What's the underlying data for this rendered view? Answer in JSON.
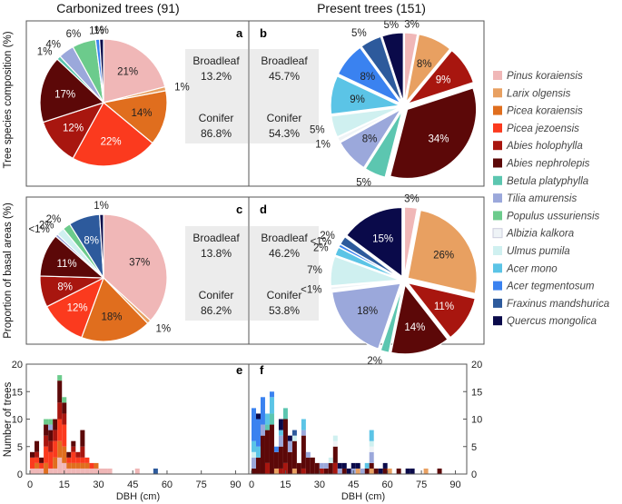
{
  "columns": {
    "left": "Carbonized trees (91)",
    "right": "Present trees (151)"
  },
  "row_labels": {
    "top": "Tree species composition (%)",
    "middle": "Proportion of basal areas (%)",
    "bottom": "Number of trees"
  },
  "species": [
    {
      "name": "Pinus koraiensis",
      "color": "#f0b7b7"
    },
    {
      "name": "Larix olgensis",
      "color": "#e8a061"
    },
    {
      "name": "Picea koraiensis",
      "color": "#e06e1e"
    },
    {
      "name": "Picea jezoensis",
      "color": "#fb3a1e"
    },
    {
      "name": "Abies holophylla",
      "color": "#a8160f"
    },
    {
      "name": "Abies nephrolepis",
      "color": "#5c0808"
    },
    {
      "name": "Betula platyphylla",
      "color": "#5cc6b0"
    },
    {
      "name": "Tilia amurensis",
      "color": "#9ba8db"
    },
    {
      "name": "Populus ussuriensis",
      "color": "#6ccb8c"
    },
    {
      "name": "Albizia kalkora",
      "color": "#eef3f6"
    },
    {
      "name": "Ulmus pumila",
      "color": "#cff0f0"
    },
    {
      "name": "Acer mono",
      "color": "#5bc4e6"
    },
    {
      "name": "Acer tegmentosum",
      "color": "#3a82f0"
    },
    {
      "name": "Fraxinus mandshurica",
      "color": "#2d5a9c"
    },
    {
      "name": "Quercus mongolica",
      "color": "#0a0a4a"
    }
  ],
  "panels": {
    "a": "a",
    "b": "b",
    "c": "c",
    "d": "d",
    "e": "e",
    "f": "f"
  },
  "boxes": {
    "a": {
      "broadleaf_label": "Broadleaf",
      "broadleaf": "13.2%",
      "conifer_label": "Conifer",
      "conifer": "86.8%"
    },
    "b": {
      "broadleaf_label": "Broadleaf",
      "broadleaf": "45.7%",
      "conifer_label": "Conifer",
      "conifer": "54.3%"
    },
    "c": {
      "broadleaf_label": "Broadleaf",
      "broadleaf": "13.8%",
      "conifer_label": "Conifer",
      "conifer": "86.2%"
    },
    "d": {
      "broadleaf_label": "Broadleaf",
      "broadleaf": "46.2%",
      "conifer_label": "Conifer",
      "conifer": "53.8%"
    }
  },
  "chart_data": [
    {
      "panel": "a",
      "type": "pie",
      "slices": [
        {
          "species": "Pinus koraiensis",
          "value": 21,
          "label": "21%"
        },
        {
          "species": "Larix olgensis",
          "value": 1,
          "label": "1%"
        },
        {
          "species": "Picea koraiensis",
          "value": 14,
          "label": "14%"
        },
        {
          "species": "Picea jezoensis",
          "value": 22,
          "label": "22%"
        },
        {
          "species": "Abies holophylla",
          "value": 12,
          "label": "12%"
        },
        {
          "species": "Abies nephrolepis",
          "value": 17,
          "label": "17%"
        },
        {
          "species": "Betula platyphylla",
          "value": 1,
          "label": "1%"
        },
        {
          "species": "Tilia amurensis",
          "value": 4,
          "label": "4%"
        },
        {
          "species": "Populus ussuriensis",
          "value": 6,
          "label": "6%"
        },
        {
          "species": "Acer tegmentosum",
          "value": 1,
          "label": "1%"
        },
        {
          "species": "Quercus mongolica",
          "value": 1,
          "label": "1%"
        }
      ]
    },
    {
      "panel": "b",
      "type": "pie",
      "slices": [
        {
          "species": "Pinus koraiensis",
          "value": 3,
          "label": "3%"
        },
        {
          "species": "Larix olgensis",
          "value": 8,
          "label": "8%"
        },
        {
          "species": "Abies holophylla",
          "value": 9,
          "label": "9%"
        },
        {
          "species": "Abies nephrolepis",
          "value": 34,
          "label": "34%"
        },
        {
          "species": "Betula platyphylla",
          "value": 5,
          "label": "5%"
        },
        {
          "species": "Tilia amurensis",
          "value": 8,
          "label": "8%"
        },
        {
          "species": "Albizia kalkora",
          "value": 1,
          "label": "1%"
        },
        {
          "species": "Ulmus pumila",
          "value": 5,
          "label": "5%"
        },
        {
          "species": "Acer mono",
          "value": 9,
          "label": "9%"
        },
        {
          "species": "Acer tegmentosum",
          "value": 8,
          "label": "8%"
        },
        {
          "species": "Fraxinus mandshurica",
          "value": 5,
          "label": "5%"
        },
        {
          "species": "Quercus mongolica",
          "value": 5,
          "label": "5%"
        }
      ]
    },
    {
      "panel": "c",
      "type": "pie",
      "slices": [
        {
          "species": "Pinus koraiensis",
          "value": 37,
          "label": "37%"
        },
        {
          "species": "Larix olgensis",
          "value": 1,
          "label": "1%"
        },
        {
          "species": "Picea koraiensis",
          "value": 18,
          "label": "18%"
        },
        {
          "species": "Picea jezoensis",
          "value": 12,
          "label": "12%"
        },
        {
          "species": "Abies holophylla",
          "value": 8,
          "label": "8%"
        },
        {
          "species": "Abies nephrolepis",
          "value": 11,
          "label": "11%"
        },
        {
          "species": "Tilia amurensis",
          "value": 0.7,
          "label": "<1%"
        },
        {
          "species": "Ulmus pumila",
          "value": 2,
          "label": "2%"
        },
        {
          "species": "Populus ussuriensis",
          "value": 2,
          "label": "2%"
        },
        {
          "species": "Fraxinus mandshurica",
          "value": 8,
          "label": "8%"
        },
        {
          "species": "Quercus mongolica",
          "value": 1,
          "label": "1%"
        }
      ]
    },
    {
      "panel": "d",
      "type": "pie",
      "slices": [
        {
          "species": "Pinus koraiensis",
          "value": 3,
          "label": "3%"
        },
        {
          "species": "Larix olgensis",
          "value": 26,
          "label": "26%"
        },
        {
          "species": "Abies holophylla",
          "value": 11,
          "label": "11%"
        },
        {
          "species": "Abies nephrolepis",
          "value": 14,
          "label": "14%"
        },
        {
          "species": "Betula platyphylla",
          "value": 2,
          "label": "2%"
        },
        {
          "species": "Tilia amurensis",
          "value": 18,
          "label": "18%"
        },
        {
          "species": "Albizia kalkora",
          "value": 0.7,
          "label": "<1%"
        },
        {
          "species": "Ulmus pumila",
          "value": 7,
          "label": "7%"
        },
        {
          "species": "Acer mono",
          "value": 2,
          "label": "2%"
        },
        {
          "species": "Acer tegmentosum",
          "value": 0.7,
          "label": "<1%"
        },
        {
          "species": "Fraxinus mandshurica",
          "value": 2,
          "label": "2%"
        },
        {
          "species": "Quercus mongolica",
          "value": 15,
          "label": "15%"
        }
      ]
    },
    {
      "panel": "e",
      "type": "bar",
      "stacked": true,
      "xlabel": "DBH (cm)",
      "ylabel": "Number of trees",
      "xlim": [
        0,
        95
      ],
      "ylim": [
        0,
        20
      ],
      "xticks": [
        0,
        15,
        30,
        45,
        60,
        75,
        90
      ],
      "yticks": [
        0,
        5,
        10,
        15,
        20
      ],
      "bin_width": 2,
      "bins": [
        {
          "x": 2,
          "counts": {
            "Pinus koraiensis": 1,
            "Picea jezoensis": 2,
            "Abies nephrolepis": 1
          }
        },
        {
          "x": 4,
          "counts": {
            "Pinus koraiensis": 1,
            "Picea koraiensis": 1,
            "Picea jezoensis": 1,
            "Abies holophylla": 1,
            "Abies nephrolepis": 2
          }
        },
        {
          "x": 6,
          "counts": {
            "Pinus koraiensis": 1,
            "Picea jezoensis": 1,
            "Abies nephrolepis": 1
          }
        },
        {
          "x": 8,
          "counts": {
            "Picea koraiensis": 2,
            "Picea jezoensis": 3,
            "Abies holophylla": 2,
            "Abies nephrolepis": 2,
            "Populus ussuriensis": 1
          }
        },
        {
          "x": 10,
          "counts": {
            "Pinus koraiensis": 1,
            "Picea jezoensis": 3,
            "Abies holophylla": 2,
            "Abies nephrolepis": 2,
            "Tilia amurensis": 1,
            "Populus ussuriensis": 1
          }
        },
        {
          "x": 12,
          "counts": {
            "Pinus koraiensis": 1,
            "Picea koraiensis": 2,
            "Picea jezoensis": 3,
            "Abies holophylla": 2,
            "Abies nephrolepis": 2
          }
        },
        {
          "x": 14,
          "counts": {
            "Pinus koraiensis": 3,
            "Picea koraiensis": 3,
            "Picea jezoensis": 4,
            "Abies holophylla": 3,
            "Abies nephrolepis": 4,
            "Populus ussuriensis": 1
          }
        },
        {
          "x": 16,
          "counts": {
            "Pinus koraiensis": 2,
            "Picea koraiensis": 3,
            "Picea jezoensis": 4,
            "Abies holophylla": 2,
            "Abies nephrolepis": 2,
            "Populus ussuriensis": 1
          }
        },
        {
          "x": 18,
          "counts": {
            "Pinus koraiensis": 1,
            "Picea koraiensis": 1,
            "Picea jezoensis": 1,
            "Abies nephrolepis": 1
          }
        },
        {
          "x": 20,
          "counts": {
            "Pinus koraiensis": 1,
            "Picea koraiensis": 1,
            "Picea jezoensis": 2,
            "Abies holophylla": 1,
            "Abies nephrolepis": 1
          }
        },
        {
          "x": 22,
          "counts": {
            "Pinus koraiensis": 1,
            "Picea koraiensis": 1,
            "Picea jezoensis": 1,
            "Abies holophylla": 1
          }
        },
        {
          "x": 24,
          "counts": {
            "Pinus koraiensis": 1,
            "Picea koraiensis": 1,
            "Picea jezoensis": 1,
            "Abies holophylla": 2,
            "Abies nephrolepis": 3
          }
        },
        {
          "x": 26,
          "counts": {
            "Pinus koraiensis": 1,
            "Picea koraiensis": 1,
            "Picea jezoensis": 1
          }
        },
        {
          "x": 28,
          "counts": {
            "Pinus koraiensis": 1,
            "Picea jezoensis": 1
          }
        },
        {
          "x": 30,
          "counts": {
            "Pinus koraiensis": 1,
            "Picea koraiensis": 1
          }
        },
        {
          "x": 32,
          "counts": {
            "Pinus koraiensis": 1
          }
        },
        {
          "x": 34,
          "counts": {
            "Pinus koraiensis": 1
          }
        },
        {
          "x": 36,
          "counts": {
            "Pinus koraiensis": 1
          }
        },
        {
          "x": 48,
          "counts": {
            "Pinus koraiensis": 1
          }
        },
        {
          "x": 56,
          "counts": {
            "Fraxinus mandshurica": 1
          }
        }
      ]
    },
    {
      "panel": "f",
      "type": "bar",
      "stacked": true,
      "xlabel": "DBH (cm)",
      "ylabel": "",
      "xlim": [
        0,
        95
      ],
      "ylim": [
        0,
        20
      ],
      "xticks": [
        0,
        15,
        30,
        45,
        60,
        75,
        90
      ],
      "yticks": [
        0,
        5,
        10,
        15,
        20
      ],
      "bin_width": 2,
      "bins": [
        {
          "x": 2,
          "counts": {
            "Abies nephrolepis": 1,
            "Tilia amurensis": 2,
            "Ulmus pumila": 1,
            "Acer mono": 2,
            "Acer tegmentosum": 6
          }
        },
        {
          "x": 4,
          "counts": {
            "Abies nephrolepis": 3,
            "Acer mono": 2,
            "Acer tegmentosum": 5,
            "Quercus mongolica": 1
          }
        },
        {
          "x": 6,
          "counts": {
            "Abies nephrolepis": 7,
            "Tilia amurensis": 2,
            "Acer tegmentosum": 5
          }
        },
        {
          "x": 8,
          "counts": {
            "Abies holophylla": 2,
            "Abies nephrolepis": 6,
            "Betula platyphylla": 1,
            "Acer mono": 2
          }
        },
        {
          "x": 10,
          "counts": {
            "Abies nephrolepis": 9,
            "Betula platyphylla": 2,
            "Acer mono": 3,
            "Acer tegmentosum": 1
          }
        },
        {
          "x": 12,
          "counts": {
            "Larix olgensis": 1,
            "Abies nephrolepis": 3,
            "Acer tegmentosum": 1
          }
        },
        {
          "x": 14,
          "counts": {
            "Abies holophylla": 1,
            "Abies nephrolepis": 4,
            "Tilia amurensis": 2,
            "Acer mono": 1,
            "Quercus mongolica": 2
          }
        },
        {
          "x": 16,
          "counts": {
            "Abies holophylla": 2,
            "Abies nephrolepis": 8,
            "Betula platyphylla": 2
          }
        },
        {
          "x": 18,
          "counts": {
            "Abies nephrolepis": 4,
            "Tilia amurensis": 2,
            "Quercus mongolica": 1
          }
        },
        {
          "x": 20,
          "counts": {
            "Larix olgensis": 1,
            "Abies nephrolepis": 5,
            "Ulmus pumila": 1,
            "Fraxinus mandshurica": 1
          }
        },
        {
          "x": 22,
          "counts": {
            "Abies nephrolepis": 2
          }
        },
        {
          "x": 24,
          "counts": {
            "Abies holophylla": 1,
            "Abies nephrolepis": 6,
            "Tilia amurensis": 1,
            "Acer mono": 2
          }
        },
        {
          "x": 26,
          "counts": {
            "Abies nephrolepis": 3,
            "Tilia amurensis": 1
          }
        },
        {
          "x": 28,
          "counts": {
            "Abies nephrolepis": 3
          }
        },
        {
          "x": 30,
          "counts": {
            "Abies nephrolepis": 2
          }
        },
        {
          "x": 32,
          "counts": {
            "Abies holophylla": 1,
            "Tilia amurensis": 1
          }
        },
        {
          "x": 34,
          "counts": {
            "Abies nephrolepis": 1,
            "Tilia amurensis": 1
          }
        },
        {
          "x": 36,
          "counts": {
            "Abies nephrolepis": 2,
            "Ulmus pumila": 1
          }
        },
        {
          "x": 38,
          "counts": {
            "Abies holophylla": 2,
            "Abies nephrolepis": 3,
            "Ulmus pumila": 1,
            "Albizia kalkora": 1
          }
        },
        {
          "x": 40,
          "counts": {
            "Tilia amurensis": 1,
            "Quercus mongolica": 1
          }
        },
        {
          "x": 42,
          "counts": {
            "Abies nephrolepis": 1,
            "Quercus mongolica": 1
          }
        },
        {
          "x": 44,
          "counts": {
            "Quercus mongolica": 1
          }
        },
        {
          "x": 46,
          "counts": {
            "Tilia amurensis": 1,
            "Quercus mongolica": 1
          }
        },
        {
          "x": 48,
          "counts": {
            "Larix olgensis": 1,
            "Quercus mongolica": 1
          }
        },
        {
          "x": 50,
          "counts": {
            "Tilia amurensis": 1
          }
        },
        {
          "x": 52,
          "counts": {
            "Abies nephrolepis": 1,
            "Acer mono": 1
          }
        },
        {
          "x": 54,
          "counts": {
            "Larix olgensis": 1,
            "Abies nephrolepis": 1,
            "Tilia amurensis": 2,
            "Ulmus pumila": 1,
            "Albizia kalkora": 1,
            "Acer mono": 2
          }
        },
        {
          "x": 56,
          "counts": {
            "Abies nephrolepis": 1
          }
        },
        {
          "x": 58,
          "counts": {
            "Quercus mongolica": 1
          }
        },
        {
          "x": 60,
          "counts": {
            "Abies nephrolepis": 1,
            "Quercus mongolica": 1
          }
        },
        {
          "x": 62,
          "counts": {
            "Larix olgensis": 1
          }
        },
        {
          "x": 66,
          "counts": {
            "Abies nephrolepis": 1
          }
        },
        {
          "x": 70,
          "counts": {
            "Quercus mongolica": 1
          }
        },
        {
          "x": 72,
          "counts": {
            "Quercus mongolica": 1
          }
        },
        {
          "x": 78,
          "counts": {
            "Larix olgensis": 1
          }
        },
        {
          "x": 84,
          "counts": {
            "Abies nephrolepis": 1
          }
        }
      ]
    }
  ]
}
